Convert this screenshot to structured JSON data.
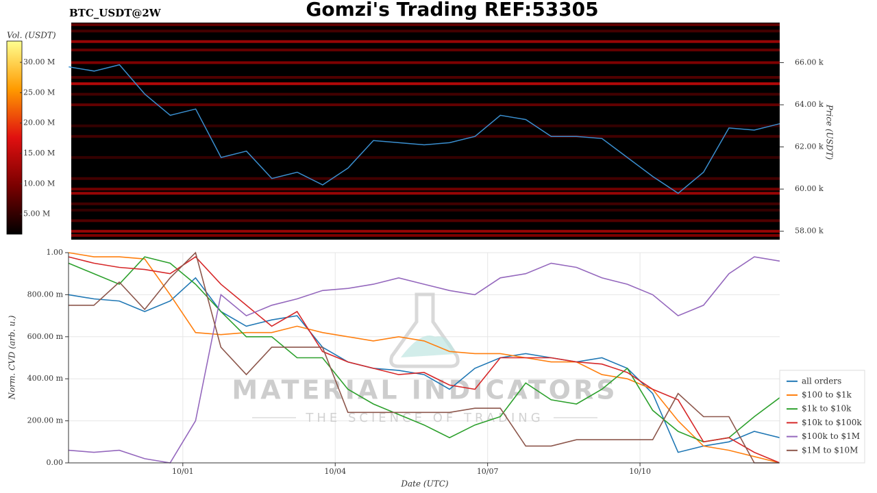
{
  "chart_data": [
    {
      "type": "heatmap",
      "title": "Gomzi's Trading REF:53305",
      "subtitle": "BTC_USDT@2W",
      "y_label": "Price (USDT)",
      "colorbar_label": "Vol. (USDT)",
      "colorscale": [
        "#000000",
        "#7a0000",
        "#e01010",
        "#ff9a00",
        "#ffff90"
      ],
      "clim": [
        1700000,
        33500000
      ],
      "cticks": [
        {
          "value": 5000000,
          "label": "5.00 M"
        },
        {
          "value": 10000000,
          "label": "10.00 M"
        },
        {
          "value": 15000000,
          "label": "15.00 M"
        },
        {
          "value": 20000000,
          "label": "20.00 M"
        },
        {
          "value": 25000000,
          "label": "25.00 M"
        },
        {
          "value": 30000000,
          "label": "30.00 M"
        }
      ],
      "xlim": [
        -2.2,
        11.75
      ],
      "ylim": [
        57600,
        67900
      ],
      "yticks": [
        {
          "value": 58000,
          "label": "58.00 k"
        },
        {
          "value": 60000,
          "label": "60.00 k"
        },
        {
          "value": 62000,
          "label": "62.00 k"
        },
        {
          "value": 64000,
          "label": "64.00 k"
        },
        {
          "value": 66000,
          "label": "66.00 k"
        }
      ],
      "heatmap": {
        "levels": [
          67800,
          67500,
          67000,
          66600,
          66000,
          65300,
          65000,
          64500,
          64000,
          63000,
          62500,
          61500,
          60500,
          60000,
          59800,
          59300,
          59000,
          58500,
          58000,
          57800
        ],
        "volumes": [
          8000000,
          6000000,
          12000000,
          8000000,
          10000000,
          7000000,
          14000000,
          6000000,
          8000000,
          5000000,
          6000000,
          5000000,
          6000000,
          9000000,
          12000000,
          6000000,
          5000000,
          7000000,
          12000000,
          10000000
        ]
      },
      "x": [
        -2.25,
        -1.75,
        -1.25,
        -0.75,
        -0.25,
        0.25,
        0.75,
        1.25,
        1.75,
        2.25,
        2.75,
        3.25,
        3.75,
        4.25,
        4.75,
        5.25,
        5.75,
        6.25,
        6.75,
        7.25,
        7.75,
        8.25,
        8.75,
        9.25,
        9.75,
        10.25,
        10.75,
        11.25,
        11.75
      ],
      "series": [
        {
          "name": "Price",
          "color": "#3a8fd0",
          "values": [
            65800,
            65600,
            65900,
            64500,
            63500,
            63800,
            61500,
            61800,
            60500,
            60800,
            60200,
            61000,
            62300,
            62200,
            62100,
            62200,
            62500,
            63500,
            63300,
            62500,
            62500,
            62400,
            61500,
            60600,
            59800,
            60800,
            62900,
            62800,
            63100
          ]
        }
      ]
    },
    {
      "type": "line",
      "x_label": "Date (UTC)",
      "y_label": "Norm. CVD (arb. u.)",
      "xlim": [
        -2.25,
        11.75
      ],
      "ylim": [
        0,
        1
      ],
      "xticks": [
        {
          "value": 0,
          "label": "10/01"
        },
        {
          "value": 3,
          "label": "10/04"
        },
        {
          "value": 6,
          "label": "10/07"
        },
        {
          "value": 9,
          "label": "10/10"
        }
      ],
      "yticks": [
        {
          "value": 0,
          "label": "0.00"
        },
        {
          "value": 0.2,
          "label": "200.00 m"
        },
        {
          "value": 0.4,
          "label": "400.00 m"
        },
        {
          "value": 0.6,
          "label": "600.00 m"
        },
        {
          "value": 0.8,
          "label": "800.00 m"
        },
        {
          "value": 1,
          "label": "1.00"
        }
      ],
      "grid": true,
      "legend": "lower right",
      "watermark": {
        "title": "MATERIAL INDICATORS",
        "subtitle": "THE SCIENCE OF TRADING"
      },
      "x": [
        -2.25,
        -1.75,
        -1.25,
        -0.75,
        -0.25,
        0.25,
        0.75,
        1.25,
        1.75,
        2.25,
        2.75,
        3.25,
        3.75,
        4.25,
        4.75,
        5.25,
        5.75,
        6.25,
        6.75,
        7.25,
        7.75,
        8.25,
        8.75,
        9.25,
        9.75,
        10.25,
        10.75,
        11.25,
        11.75
      ],
      "series": [
        {
          "name": "all orders",
          "color": "#1f77b4",
          "values": [
            0.8,
            0.78,
            0.77,
            0.72,
            0.77,
            0.88,
            0.72,
            0.65,
            0.68,
            0.7,
            0.55,
            0.48,
            0.45,
            0.44,
            0.42,
            0.35,
            0.45,
            0.5,
            0.52,
            0.5,
            0.48,
            0.5,
            0.45,
            0.33,
            0.05,
            0.08,
            0.1,
            0.15,
            0.12
          ]
        },
        {
          "name": "$100 to $1k",
          "color": "#ff7f0e",
          "values": [
            1.0,
            0.98,
            0.98,
            0.97,
            0.8,
            0.62,
            0.61,
            0.62,
            0.62,
            0.65,
            0.62,
            0.6,
            0.58,
            0.6,
            0.58,
            0.53,
            0.52,
            0.52,
            0.5,
            0.48,
            0.48,
            0.42,
            0.4,
            0.35,
            0.2,
            0.08,
            0.06,
            0.03,
            0.0
          ]
        },
        {
          "name": "$1k to $10k",
          "color": "#2ca02c",
          "values": [
            0.95,
            0.9,
            0.85,
            0.98,
            0.95,
            0.85,
            0.72,
            0.6,
            0.6,
            0.5,
            0.5,
            0.35,
            0.28,
            0.23,
            0.18,
            0.12,
            0.18,
            0.22,
            0.38,
            0.3,
            0.28,
            0.35,
            0.45,
            0.25,
            0.15,
            0.1,
            0.12,
            0.22,
            0.31
          ]
        },
        {
          "name": "$10k to $100k",
          "color": "#d62728",
          "values": [
            0.98,
            0.95,
            0.93,
            0.92,
            0.9,
            0.98,
            0.85,
            0.75,
            0.65,
            0.72,
            0.53,
            0.48,
            0.45,
            0.42,
            0.43,
            0.37,
            0.35,
            0.5,
            0.5,
            0.5,
            0.48,
            0.47,
            0.43,
            0.35,
            0.3,
            0.1,
            0.12,
            0.05,
            0.0
          ]
        },
        {
          "name": "$100k to $1M",
          "color": "#9467bd",
          "values": [
            0.06,
            0.05,
            0.06,
            0.02,
            0.0,
            0.2,
            0.8,
            0.7,
            0.75,
            0.78,
            0.82,
            0.83,
            0.85,
            0.88,
            0.85,
            0.82,
            0.8,
            0.88,
            0.9,
            0.95,
            0.93,
            0.88,
            0.85,
            0.8,
            0.7,
            0.75,
            0.9,
            0.98,
            0.96
          ]
        },
        {
          "name": "$1M to $10M",
          "color": "#8c564b",
          "values": [
            0.75,
            0.75,
            0.86,
            0.73,
            0.88,
            1.0,
            0.55,
            0.42,
            0.55,
            0.55,
            0.55,
            0.24,
            0.24,
            0.24,
            0.24,
            0.24,
            0.26,
            0.26,
            0.08,
            0.08,
            0.11,
            0.11,
            0.11,
            0.11,
            0.33,
            0.22,
            0.22,
            0.0,
            0.0
          ]
        }
      ]
    }
  ]
}
